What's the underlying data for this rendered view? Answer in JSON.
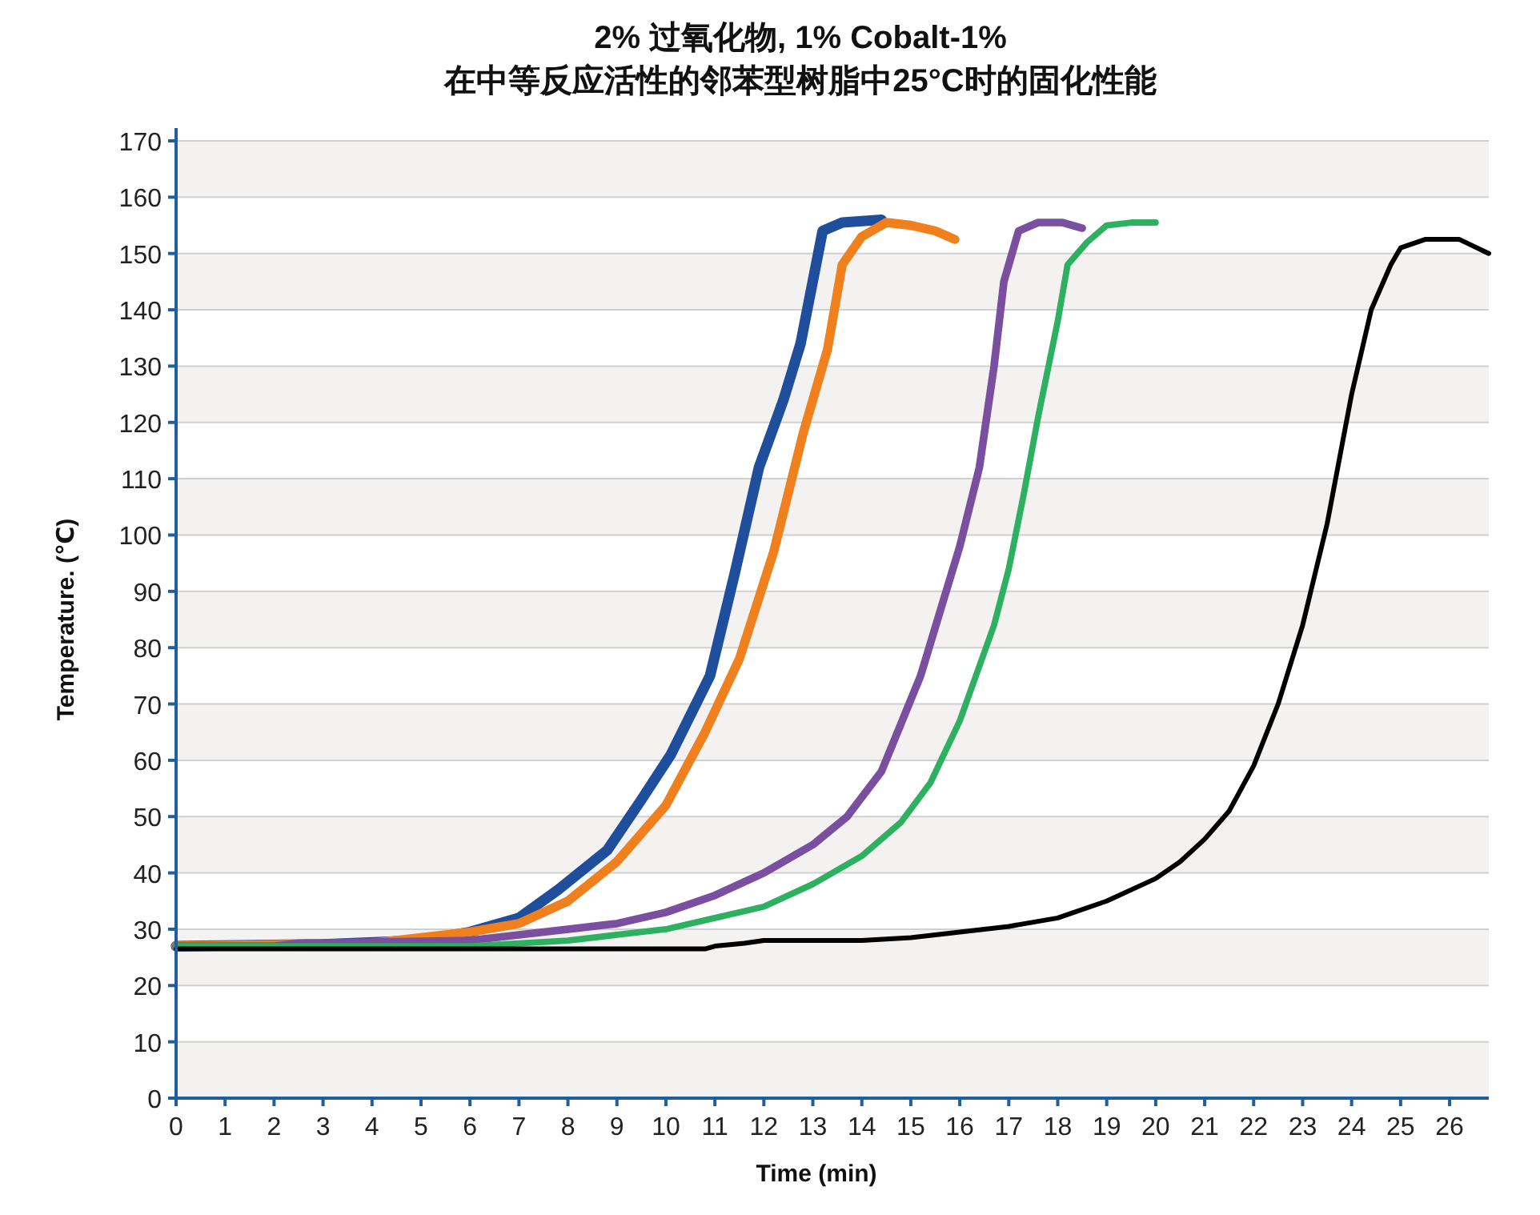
{
  "chart_data": {
    "type": "line",
    "title": "2% 过氧化物, 1% Cobalt-1%\n在中等反应活性的邻苯型树脂中25°C时的固化性能",
    "xlabel": "Time (min)",
    "ylabel": "Temperature. (℃)",
    "xlim": [
      0,
      26.8
    ],
    "xticks": [
      0,
      1,
      2,
      3,
      4,
      5,
      6,
      7,
      8,
      9,
      10,
      11,
      12,
      13,
      14,
      15,
      16,
      17,
      18,
      19,
      20,
      21,
      22,
      23,
      24,
      25,
      26
    ],
    "ylim": [
      0,
      170
    ],
    "yticks": [
      0,
      10,
      20,
      30,
      40,
      50,
      60,
      70,
      80,
      90,
      100,
      110,
      120,
      130,
      140,
      150,
      160,
      170
    ],
    "grid": "y",
    "marker": "none",
    "line_style": "solid",
    "series": [
      {
        "color": "#1f4e9c",
        "x": [
          0,
          3,
          5,
          6,
          7,
          7.8,
          8.8,
          9.5,
          10.1,
          10.9,
          11.4,
          11.9,
          12.4,
          12.75,
          13.2,
          13.6,
          14.4
        ],
        "values": [
          27,
          27.3,
          28,
          29.5,
          32,
          37,
          44,
          53,
          61,
          75,
          93,
          112,
          124,
          134,
          154,
          155.5,
          156
        ]
      },
      {
        "color": "#f07f1e",
        "x": [
          0,
          4,
          5,
          6,
          7,
          8,
          9,
          10,
          10.8,
          11.5,
          12.2,
          12.8,
          13.3,
          13.6,
          14,
          14.5,
          15,
          15.5,
          15.9
        ],
        "values": [
          27,
          27.5,
          28.5,
          29.5,
          31,
          35,
          42,
          52,
          65,
          78,
          97,
          118,
          133,
          148,
          153,
          155.5,
          155,
          154,
          152.5
        ]
      },
      {
        "color": "#7b4fa0",
        "x": [
          0,
          2,
          2.5,
          6,
          7,
          8,
          9,
          10,
          11,
          12,
          13,
          13.7,
          14.4,
          15.2,
          16,
          16.4,
          16.7,
          16.9,
          17.2,
          17.6,
          18.1,
          18.5
        ],
        "values": [
          27,
          27,
          27.5,
          28,
          29,
          30,
          31,
          33,
          36,
          40,
          45,
          50,
          58,
          75,
          98,
          112,
          130,
          145,
          154,
          155.5,
          155.5,
          154.5
        ]
      },
      {
        "color": "#2db060",
        "x": [
          0,
          6,
          7,
          8,
          9,
          10,
          11,
          12,
          13,
          14,
          14.8,
          15.4,
          16,
          16.7,
          17,
          17.3,
          17.6,
          18,
          18.2,
          18.6,
          19,
          19.5,
          20
        ],
        "values": [
          27,
          27,
          27.5,
          28,
          29,
          30,
          32,
          34,
          38,
          43,
          49,
          56,
          67,
          84,
          94,
          107,
          121,
          138,
          148,
          152,
          155,
          155.5,
          155.5
        ]
      },
      {
        "color": "#000000",
        "x": [
          0,
          10.8,
          11,
          11.6,
          12,
          14,
          15,
          16,
          17,
          18,
          19,
          20,
          20.5,
          21,
          21.5,
          22,
          22.5,
          23,
          23.5,
          24,
          24.4,
          24.8,
          25,
          25.5,
          26.2,
          26.8
        ],
        "values": [
          26.5,
          26.5,
          27,
          27.5,
          28,
          28,
          28.5,
          29.5,
          30.5,
          32,
          35,
          39,
          42,
          46,
          51,
          59,
          70,
          84,
          102,
          125,
          140,
          148,
          151,
          152.5,
          152.5,
          150
        ]
      }
    ]
  }
}
